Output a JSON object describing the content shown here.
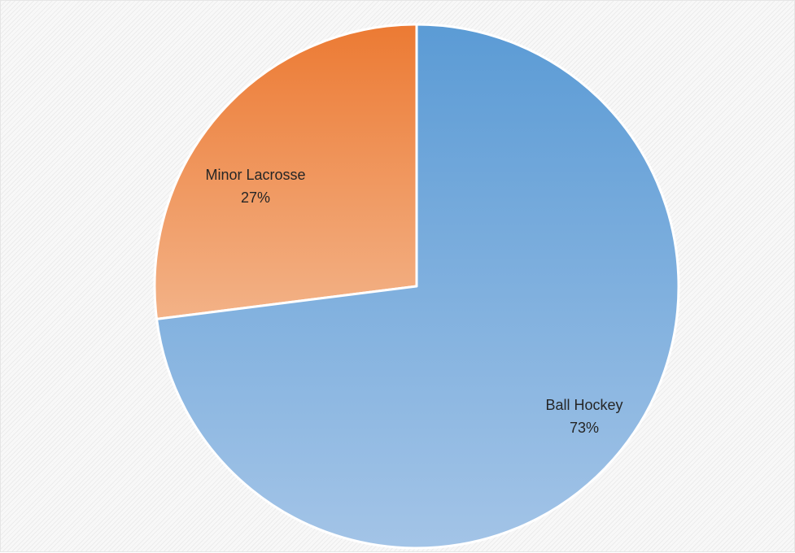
{
  "chart_data": {
    "type": "pie",
    "title": "",
    "categories": [
      "Minor Lacrosse",
      "Ball Hockey"
    ],
    "values": [
      27,
      73
    ],
    "unit": "%",
    "labels": [
      {
        "name": "Minor Lacrosse",
        "percent": "27%"
      },
      {
        "name": "Ball Hockey",
        "percent": "73%"
      }
    ],
    "colors": {
      "Minor Lacrosse": {
        "top": "#ec7a33",
        "bottom": "#f3b287"
      },
      "Ball Hockey": {
        "top": "#5b9bd5",
        "bottom": "#a3c4e7"
      }
    },
    "start_category": "Minor Lacrosse",
    "direction": "counterclockwise-from-top",
    "legend": "none",
    "grid": false
  }
}
